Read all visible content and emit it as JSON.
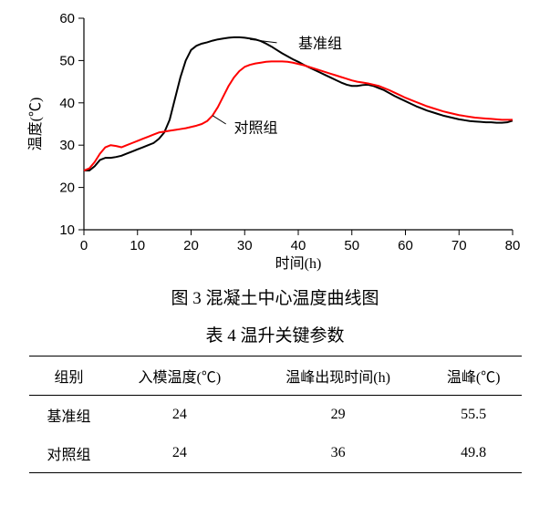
{
  "chart": {
    "type": "line",
    "background_color": "#ffffff",
    "xlabel": "时间(h)",
    "ylabel": "温度(℃)",
    "label_fontsize": 16,
    "tick_fontsize": 15,
    "xlim": [
      0,
      80
    ],
    "ylim": [
      10,
      60
    ],
    "xtick_step": 10,
    "ytick_step": 10,
    "xticks": [
      0,
      10,
      20,
      30,
      40,
      50,
      60,
      70,
      80
    ],
    "yticks": [
      10,
      20,
      30,
      40,
      50,
      60
    ],
    "axis_color": "#000000",
    "line_width": 2.0,
    "series": [
      {
        "name": "基准组",
        "color": "#000000",
        "label_xy": [
          40,
          54
        ],
        "leader_from": [
          36,
          54.2
        ],
        "leader_to": [
          31,
          55
        ],
        "points": [
          [
            0,
            24
          ],
          [
            1,
            24
          ],
          [
            2,
            25
          ],
          [
            3,
            26.5
          ],
          [
            4,
            27
          ],
          [
            5,
            27
          ],
          [
            6,
            27.2
          ],
          [
            7,
            27.5
          ],
          [
            8,
            28
          ],
          [
            9,
            28.5
          ],
          [
            10,
            29
          ],
          [
            11,
            29.5
          ],
          [
            12,
            30
          ],
          [
            13,
            30.5
          ],
          [
            14,
            31.5
          ],
          [
            15,
            33
          ],
          [
            16,
            36
          ],
          [
            17,
            41
          ],
          [
            18,
            46
          ],
          [
            19,
            50
          ],
          [
            20,
            52.5
          ],
          [
            21,
            53.5
          ],
          [
            22,
            54
          ],
          [
            23,
            54.3
          ],
          [
            24,
            54.7
          ],
          [
            25,
            55
          ],
          [
            26,
            55.2
          ],
          [
            27,
            55.4
          ],
          [
            28,
            55.5
          ],
          [
            29,
            55.5
          ],
          [
            30,
            55.4
          ],
          [
            31,
            55.2
          ],
          [
            32,
            55
          ],
          [
            33,
            54.6
          ],
          [
            34,
            54
          ],
          [
            35,
            53.3
          ],
          [
            36,
            52.5
          ],
          [
            37,
            51.7
          ],
          [
            38,
            51
          ],
          [
            39,
            50.3
          ],
          [
            40,
            49.7
          ],
          [
            41,
            49
          ],
          [
            42,
            48.4
          ],
          [
            43,
            47.8
          ],
          [
            44,
            47.2
          ],
          [
            45,
            46.6
          ],
          [
            46,
            46
          ],
          [
            47,
            45.4
          ],
          [
            48,
            44.8
          ],
          [
            49,
            44.3
          ],
          [
            50,
            44
          ],
          [
            51,
            44
          ],
          [
            52,
            44.2
          ],
          [
            53,
            44.3
          ],
          [
            54,
            44
          ],
          [
            55,
            43.5
          ],
          [
            56,
            43
          ],
          [
            57,
            42.3
          ],
          [
            58,
            41.6
          ],
          [
            59,
            41
          ],
          [
            60,
            40.4
          ],
          [
            61,
            39.8
          ],
          [
            62,
            39.2
          ],
          [
            63,
            38.7
          ],
          [
            64,
            38.2
          ],
          [
            65,
            37.8
          ],
          [
            66,
            37.4
          ],
          [
            67,
            37
          ],
          [
            68,
            36.7
          ],
          [
            69,
            36.4
          ],
          [
            70,
            36.1
          ],
          [
            71,
            35.9
          ],
          [
            72,
            35.7
          ],
          [
            73,
            35.6
          ],
          [
            74,
            35.5
          ],
          [
            75,
            35.4
          ],
          [
            76,
            35.4
          ],
          [
            77,
            35.3
          ],
          [
            78,
            35.3
          ],
          [
            79,
            35.4
          ],
          [
            80,
            35.8
          ]
        ]
      },
      {
        "name": "对照组",
        "color": "#ff0000",
        "label_xy": [
          28,
          34
        ],
        "leader_from": [
          26.5,
          35
        ],
        "leader_to": [
          24,
          37
        ],
        "points": [
          [
            0,
            24
          ],
          [
            1,
            24.5
          ],
          [
            2,
            26
          ],
          [
            3,
            28
          ],
          [
            4,
            29.5
          ],
          [
            5,
            30
          ],
          [
            6,
            29.8
          ],
          [
            7,
            29.5
          ],
          [
            8,
            30
          ],
          [
            9,
            30.5
          ],
          [
            10,
            31
          ],
          [
            11,
            31.5
          ],
          [
            12,
            32
          ],
          [
            13,
            32.5
          ],
          [
            14,
            33
          ],
          [
            15,
            33.2
          ],
          [
            16,
            33.4
          ],
          [
            17,
            33.6
          ],
          [
            18,
            33.8
          ],
          [
            19,
            34
          ],
          [
            20,
            34.3
          ],
          [
            21,
            34.6
          ],
          [
            22,
            35
          ],
          [
            23,
            35.7
          ],
          [
            24,
            37
          ],
          [
            25,
            39
          ],
          [
            26,
            41.5
          ],
          [
            27,
            44
          ],
          [
            28,
            46
          ],
          [
            29,
            47.5
          ],
          [
            30,
            48.5
          ],
          [
            31,
            49
          ],
          [
            32,
            49.3
          ],
          [
            33,
            49.5
          ],
          [
            34,
            49.7
          ],
          [
            35,
            49.8
          ],
          [
            36,
            49.8
          ],
          [
            37,
            49.8
          ],
          [
            38,
            49.7
          ],
          [
            39,
            49.5
          ],
          [
            40,
            49.2
          ],
          [
            41,
            48.9
          ],
          [
            42,
            48.5
          ],
          [
            43,
            48.1
          ],
          [
            44,
            47.7
          ],
          [
            45,
            47.3
          ],
          [
            46,
            46.9
          ],
          [
            47,
            46.5
          ],
          [
            48,
            46.1
          ],
          [
            49,
            45.7
          ],
          [
            50,
            45.3
          ],
          [
            51,
            45
          ],
          [
            52,
            44.8
          ],
          [
            53,
            44.6
          ],
          [
            54,
            44.3
          ],
          [
            55,
            44
          ],
          [
            56,
            43.5
          ],
          [
            57,
            43
          ],
          [
            58,
            42.4
          ],
          [
            59,
            41.8
          ],
          [
            60,
            41.2
          ],
          [
            61,
            40.7
          ],
          [
            62,
            40.2
          ],
          [
            63,
            39.7
          ],
          [
            64,
            39.2
          ],
          [
            65,
            38.8
          ],
          [
            66,
            38.4
          ],
          [
            67,
            38
          ],
          [
            68,
            37.7
          ],
          [
            69,
            37.4
          ],
          [
            70,
            37.1
          ],
          [
            71,
            36.9
          ],
          [
            72,
            36.7
          ],
          [
            73,
            36.5
          ],
          [
            74,
            36.4
          ],
          [
            75,
            36.3
          ],
          [
            76,
            36.2
          ],
          [
            77,
            36.1
          ],
          [
            78,
            36
          ],
          [
            79,
            36
          ],
          [
            80,
            36
          ]
        ]
      }
    ]
  },
  "figure_caption": "图 3  混凝土中心温度曲线图",
  "table_caption": "表 4  温升关键参数",
  "table": {
    "columns": [
      "组别",
      "入模温度(℃)",
      "温峰出现时间(h)",
      "温峰(℃)"
    ],
    "rows": [
      [
        "基准组",
        "24",
        "29",
        "55.5"
      ],
      [
        "对照组",
        "24",
        "36",
        "49.8"
      ]
    ],
    "header_fontsize": 16,
    "cell_fontsize": 16,
    "rule_color": "#000000"
  }
}
